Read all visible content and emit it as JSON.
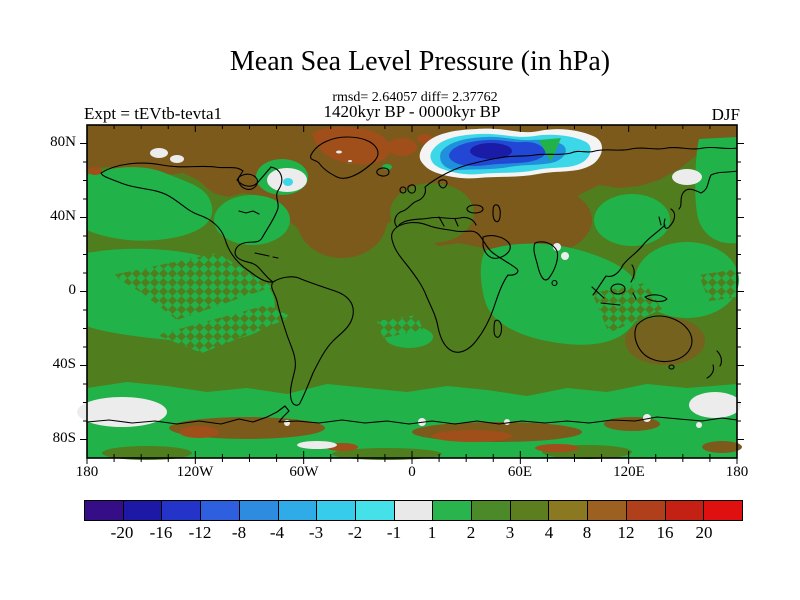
{
  "title": "Mean Sea Level Pressure (in hPa)",
  "stats_line": "rmsd= 2.64057 diff= 2.37762",
  "period_line": "1420kyr BP - 0000kyr BP",
  "experiment_label": "Expt = tEVtb-tevta1",
  "season_label": "DJF",
  "axes": {
    "yticks": [
      "80N",
      "40N",
      "0",
      "40S",
      "80S"
    ],
    "xticks": [
      "180",
      "120W",
      "60W",
      "0",
      "60E",
      "120E",
      "180"
    ]
  },
  "colorbar": {
    "labels": [
      "-20",
      "-16",
      "-12",
      "-8",
      "-4",
      "-3",
      "-2",
      "-1",
      "1",
      "2",
      "3",
      "4",
      "8",
      "12",
      "16",
      "20"
    ],
    "colors": [
      "#350E87",
      "#1D18A6",
      "#2433C8",
      "#2E5FDE",
      "#2E8CE0",
      "#2FACE8",
      "#38CCEC",
      "#44E2E8",
      "#E9E9E9",
      "#29B44D",
      "#4C8A29",
      "#5C7E1E",
      "#8B7922",
      "#9C6120",
      "#B03F1C",
      "#C42014",
      "#E11010"
    ]
  },
  "chart_data": {
    "type": "heatmap",
    "title": "Mean Sea Level Pressure (in hPa)",
    "units": "hPa",
    "statistics": {
      "rmsd": 2.64057,
      "diff": 2.37762
    },
    "experiment": "tEVtb-tevta1",
    "comparison": "1420kyr BP - 0000kyr BP",
    "season": "DJF",
    "projection": "equirectangular world map with coastlines",
    "lon_range": [
      -180,
      180
    ],
    "lat_range": [
      -90,
      90
    ],
    "xticks": [
      "180",
      "120W",
      "60W",
      "0",
      "60E",
      "120E",
      "180"
    ],
    "yticks": [
      "80N",
      "40N",
      "0",
      "40S",
      "80S"
    ],
    "contour_levels": [
      -20,
      -16,
      -12,
      -8,
      -4,
      -3,
      -2,
      -1,
      1,
      2,
      3,
      4,
      8,
      12,
      16,
      20
    ],
    "palette": [
      "#350E87",
      "#1D18A6",
      "#2433C8",
      "#2E5FDE",
      "#2E8CE0",
      "#2FACE8",
      "#38CCEC",
      "#44E2E8",
      "#E9E9E9",
      "#29B44D",
      "#4C8A29",
      "#5C7E1E",
      "#8B7922",
      "#9C6120",
      "#B03F1C",
      "#C42014",
      "#E11010"
    ],
    "regions": [
      {
        "area": "Arctic Ocean north of Siberia (~60E-140E, 75N-85N)",
        "value_hPa": "-8 to -1, strong negative anomaly: white rim, cyan, blue, dark-blue core"
      },
      {
        "area": "High northern latitudes 40N-90N, most longitudes",
        "value_hPa": "4 to 12 (dark brown band)"
      },
      {
        "area": "Greenland and Arctic fringe patches",
        "value_hPa": "8 to 12 (reddish-brown)"
      },
      {
        "area": "Northeast Pacific, eastern North America, East Asia, far-west Pacific column",
        "value_hPa": "1 to 2 (bright green blobs)"
      },
      {
        "area": "Tropics and subtropics generally",
        "value_hPa": "2 to 4 (olive green) with 1 to 2 over tropical east Pacific and Indian Ocean"
      },
      {
        "area": "Southern mid-latitude band ~45S-65S",
        "value_hPa": "1 to 2 (green) with near-zero (-1 to 1, white) patches near 55S at far west and far east"
      },
      {
        "area": "Antarctic coastal strip",
        "value_hPa": "4 to 12 (brown/rust patches)"
      },
      {
        "area": "Central tropical Pacific and west Pacific transition zones",
        "value_hPa": "1 to 3 with diamond hatching (dithered contour transition)"
      }
    ]
  }
}
